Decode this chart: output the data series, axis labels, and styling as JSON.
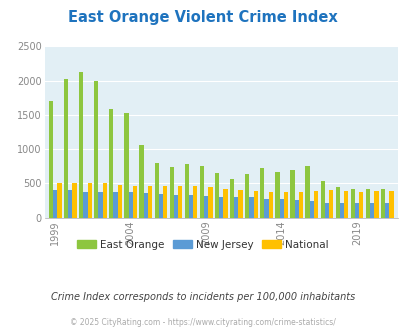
{
  "title": "East Orange Violent Crime Index",
  "subtitle": "Crime Index corresponds to incidents per 100,000 inhabitants",
  "footer": "© 2025 CityRating.com - https://www.cityrating.com/crime-statistics/",
  "years": [
    1999,
    2000,
    2001,
    2002,
    2003,
    2004,
    2005,
    2006,
    2007,
    2008,
    2009,
    2010,
    2011,
    2012,
    2013,
    2014,
    2015,
    2016,
    2017,
    2018,
    2019,
    2020,
    2021
  ],
  "east_orange": [
    1700,
    2020,
    2130,
    2000,
    1580,
    1520,
    1060,
    800,
    740,
    780,
    750,
    650,
    565,
    640,
    720,
    660,
    690,
    750,
    530,
    450,
    420,
    420,
    420
  ],
  "new_jersey": [
    400,
    400,
    370,
    370,
    370,
    370,
    360,
    340,
    330,
    330,
    320,
    310,
    300,
    300,
    280,
    280,
    260,
    250,
    220,
    210,
    210,
    210,
    210
  ],
  "national": [
    500,
    510,
    510,
    500,
    480,
    470,
    470,
    470,
    470,
    460,
    450,
    420,
    400,
    390,
    380,
    370,
    370,
    390,
    400,
    390,
    380,
    390,
    390
  ],
  "color_east_orange": "#8dc63f",
  "color_new_jersey": "#5b9bd5",
  "color_national": "#ffc000",
  "ylim": [
    0,
    2500
  ],
  "yticks": [
    0,
    500,
    1000,
    1500,
    2000,
    2500
  ],
  "xtick_years": [
    1999,
    2004,
    2009,
    2014,
    2019
  ],
  "plot_bg": "#e2eff5",
  "title_color": "#1e73be",
  "axis_color": "#888888",
  "subtitle_color": "#444444",
  "footer_color": "#aaaaaa"
}
